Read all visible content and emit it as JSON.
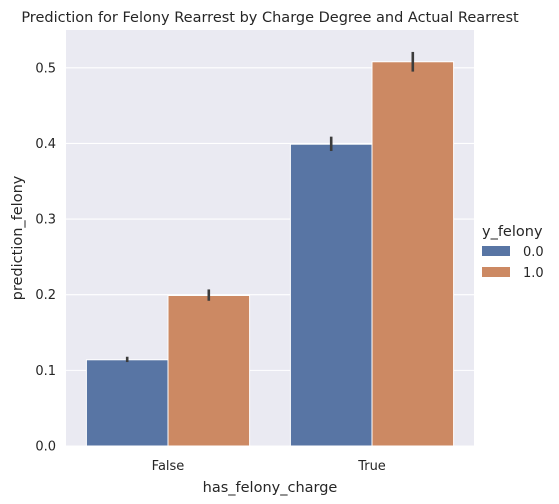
{
  "chart_data": {
    "type": "bar",
    "title": "Prediction for Felony Rearrest by Charge Degree and Actual Rearrest",
    "xlabel": "has_felony_charge",
    "ylabel": "prediction_felony",
    "categories": [
      "False",
      "True"
    ],
    "ylim": [
      0,
      0.55
    ],
    "yticks": [
      "0.0",
      "0.1",
      "0.2",
      "0.3",
      "0.4",
      "0.5"
    ],
    "grid": true,
    "legend": {
      "title": "y_felony",
      "placement": "right"
    },
    "series": [
      {
        "name": "0.0",
        "color": "#5875a4",
        "values": [
          0.114,
          0.399
        ],
        "error": [
          [
            0.111,
            0.118
          ],
          [
            0.39,
            0.409
          ]
        ]
      },
      {
        "name": "1.0",
        "color": "#cc8963",
        "values": [
          0.199,
          0.508
        ],
        "error": [
          [
            0.192,
            0.207
          ],
          [
            0.495,
            0.521
          ]
        ]
      }
    ]
  }
}
